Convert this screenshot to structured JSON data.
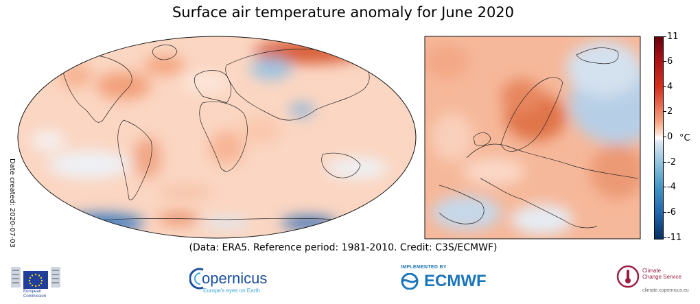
{
  "title": "Surface air temperature anomaly for June 2020",
  "date_created": "Date created: 2020-07-03",
  "credit": "(Data: ERA5.  Reference period: 1981-2010.  Credit: C3S/ECMWF)",
  "colorbar": {
    "unit": "°C",
    "ticks": [
      "11",
      "6",
      "4",
      "2",
      "0",
      "-2",
      "-4",
      "-6",
      "-11"
    ],
    "colors": [
      "#053061",
      "#2166ac",
      "#4393c3",
      "#92c5de",
      "#ffffff",
      "#f4a582",
      "#d7301f",
      "#a50f15",
      "#67000d"
    ]
  },
  "logos": {
    "eu_line1": "European",
    "eu_line2": "Commission",
    "copernicus_name": "opernicus",
    "copernicus_tagline": "Europe's eyes on Earth",
    "ecmwf_implemented": "IMPLEMENTED BY",
    "ecmwf_name": "ECMWF",
    "c3s_line1": "Climate",
    "c3s_line2": "Change Service",
    "c3s_url": "climate.copernicus.eu"
  }
}
